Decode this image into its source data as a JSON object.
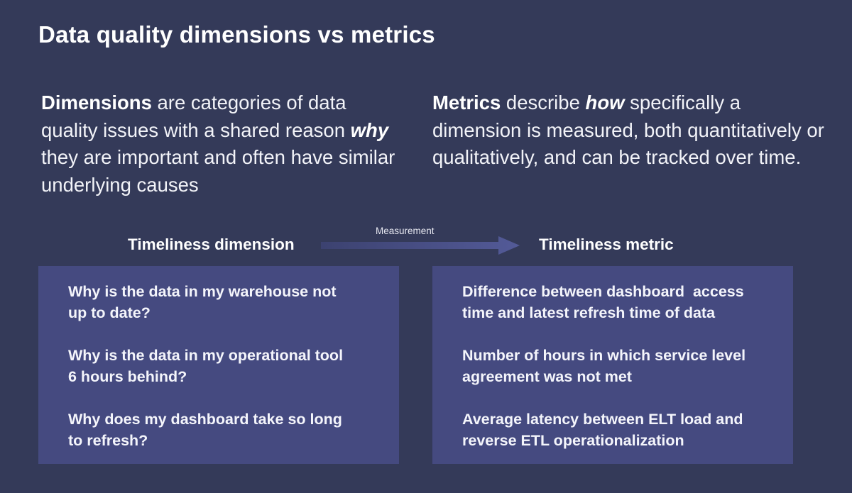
{
  "title": "Data quality dimensions vs metrics",
  "intro": {
    "dimensions": {
      "term": "Dimensions",
      "text_a": " are categories of data quality issues with a shared reason ",
      "emphasis": "why",
      "text_b": " they are important and often have similar underlying causes"
    },
    "metrics": {
      "term": "Metrics",
      "text_a": " describe ",
      "emphasis": "how",
      "text_b": " specifically a dimension is measured, both quantitatively or qualitatively, and can be tracked over time."
    }
  },
  "measurement_label": "Measurement",
  "dimension_column": {
    "heading": "Timeliness dimension",
    "items": [
      "Why is the data in my warehouse not\nup to date?",
      "Why is the data in my operational tool\n6 hours behind?",
      "Why does my dashboard take so long\nto refresh?"
    ]
  },
  "metric_column": {
    "heading": "Timeliness metric",
    "items": [
      "Difference between dashboard  access\ntime and latest refresh time of data",
      "Number of hours in which service level\nagreement was not met",
      "Average latency between ELT load and\nreverse ETL operationalization"
    ]
  },
  "colors": {
    "background": "#343a59",
    "card": "#454a80",
    "arrow": "#4f5691"
  },
  "icons": {
    "measurement_arrow": "arrow-right-icon"
  }
}
